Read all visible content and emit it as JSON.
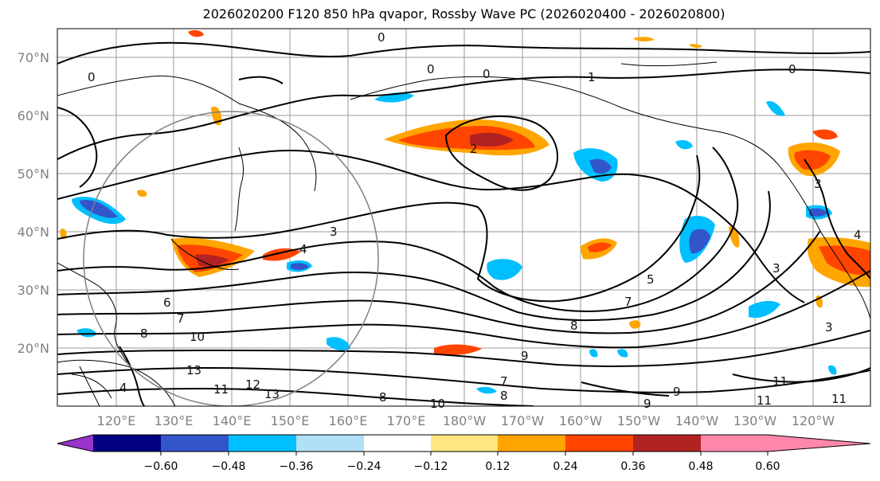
{
  "title": "2026020200 F120 850 hPa qvapor, Rossby Wave PC (2026020400 - 2026020800)",
  "lat_labels": [
    "70°N",
    "60°N",
    "50°N",
    "40°N",
    "30°N",
    "20°N"
  ],
  "lon_labels": [
    "120°E",
    "130°E",
    "140°E",
    "150°E",
    "160°E",
    "170°E",
    "180°W",
    "170°W",
    "160°W",
    "150°W",
    "140°W",
    "130°W",
    "120°W"
  ],
  "colorbar": {
    "colors": [
      "#9933cc",
      "#000080",
      "#3355cc",
      "#00bfff",
      "#b0e0f8",
      "#ffffff",
      "#ffe680",
      "#ffa500",
      "#ff4500",
      "#b22222",
      "#ff88aa"
    ],
    "ticks": [
      "−0.60",
      "−0.48",
      "−0.36",
      "−0.24",
      "−0.12",
      "0.12",
      "0.24",
      "0.36",
      "0.48",
      "0.60"
    ]
  },
  "contour_labels": [
    "0",
    "0",
    "0",
    "0",
    "1",
    "0",
    "2",
    "3",
    "3",
    "4",
    "5",
    "6",
    "7",
    "7",
    "8",
    "8",
    "9",
    "9",
    "10",
    "11",
    "12",
    "13",
    "4",
    "8",
    "3",
    "3",
    "4",
    "11",
    "13",
    "7",
    "8",
    "9",
    "10",
    "11",
    "11"
  ]
}
